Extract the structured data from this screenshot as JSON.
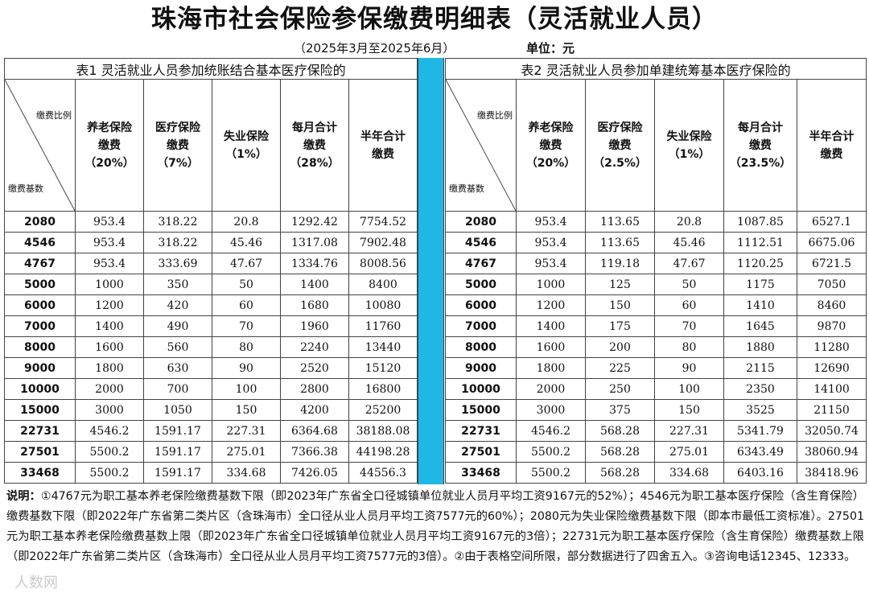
{
  "title": "珠海市社会保险参保缴费明细表（灵活就业人员）",
  "period": "（2025年3月至2025年6月）",
  "unit": "单位：元",
  "corner": {
    "ratio_label": "缴费比例",
    "base_label": "缴费基数"
  },
  "table1": {
    "caption": "表1  灵活就业人员参加统账结合基本医疗保险的",
    "headers": [
      [
        "养老保险",
        "缴费",
        "（20%）"
      ],
      [
        "医疗保险",
        "缴费",
        "（7%）"
      ],
      [
        "失业保险",
        "（1%）"
      ],
      [
        "每月合计",
        "缴费",
        "（28%）"
      ],
      [
        "半年合计",
        "缴费"
      ]
    ],
    "rows": [
      [
        "2080",
        "953.4",
        "318.22",
        "20.8",
        "1292.42",
        "7754.52"
      ],
      [
        "4546",
        "953.4",
        "318.22",
        "45.46",
        "1317.08",
        "7902.48"
      ],
      [
        "4767",
        "953.4",
        "333.69",
        "47.67",
        "1334.76",
        "8008.56"
      ],
      [
        "5000",
        "1000",
        "350",
        "50",
        "1400",
        "8400"
      ],
      [
        "6000",
        "1200",
        "420",
        "60",
        "1680",
        "10080"
      ],
      [
        "7000",
        "1400",
        "490",
        "70",
        "1960",
        "11760"
      ],
      [
        "8000",
        "1600",
        "560",
        "80",
        "2240",
        "13440"
      ],
      [
        "9000",
        "1800",
        "630",
        "90",
        "2520",
        "15120"
      ],
      [
        "10000",
        "2000",
        "700",
        "100",
        "2800",
        "16800"
      ],
      [
        "15000",
        "3000",
        "1050",
        "150",
        "4200",
        "25200"
      ],
      [
        "22731",
        "4546.2",
        "1591.17",
        "227.31",
        "6364.68",
        "38188.08"
      ],
      [
        "27501",
        "5500.2",
        "1591.17",
        "275.01",
        "7366.38",
        "44198.28"
      ],
      [
        "33468",
        "5500.2",
        "1591.17",
        "334.68",
        "7426.05",
        "44556.3"
      ]
    ]
  },
  "table2": {
    "caption": "表2  灵活就业人员参加单建统筹基本医疗保险的",
    "headers": [
      [
        "养老保险",
        "缴费",
        "（20%）"
      ],
      [
        "医疗保险",
        "缴费",
        "（2.5%）"
      ],
      [
        "失业保险",
        "（1%）"
      ],
      [
        "每月合计",
        "缴费",
        "（23.5%）"
      ],
      [
        "半年合计",
        "缴费"
      ]
    ],
    "rows": [
      [
        "2080",
        "953.4",
        "113.65",
        "20.8",
        "1087.85",
        "6527.1"
      ],
      [
        "4546",
        "953.4",
        "113.65",
        "45.46",
        "1112.51",
        "6675.06"
      ],
      [
        "4767",
        "953.4",
        "119.18",
        "47.67",
        "1120.25",
        "6721.5"
      ],
      [
        "5000",
        "1000",
        "125",
        "50",
        "1175",
        "7050"
      ],
      [
        "6000",
        "1200",
        "150",
        "60",
        "1410",
        "8460"
      ],
      [
        "7000",
        "1400",
        "175",
        "70",
        "1645",
        "9870"
      ],
      [
        "8000",
        "1600",
        "200",
        "80",
        "1880",
        "11280"
      ],
      [
        "9000",
        "1800",
        "225",
        "90",
        "2115",
        "12690"
      ],
      [
        "10000",
        "2000",
        "250",
        "100",
        "2350",
        "14100"
      ],
      [
        "15000",
        "3000",
        "375",
        "150",
        "3525",
        "21150"
      ],
      [
        "22731",
        "4546.2",
        "568.28",
        "227.31",
        "5341.79",
        "32050.74"
      ],
      [
        "27501",
        "5500.2",
        "568.28",
        "275.01",
        "6343.49",
        "38060.94"
      ],
      [
        "33468",
        "5500.2",
        "568.28",
        "334.68",
        "6403.16",
        "38418.96"
      ]
    ]
  },
  "notes": {
    "lead": "说明：",
    "text": "①4767元为职工基本养老保险缴费基数下限（即2023年广东省全口径城镇单位就业人员月平均工资9167元的52%）；4546元为职工基本医疗保险（含生育保险）缴费基数下限（即2022年广东省第二类片区（含珠海市）全口径从业人员月平均工资7577元的60%）；2080元为失业保险缴费基数下限（即本市最低工资标准）。27501元为职工基本养老保险缴费基数上限（即2023年广东省全口径城镇单位就业人员月平均工资9167元的3倍）；22731元为职工基本医疗保险（含生育保险）缴费基数上限（即2022年广东省第二类片区（含珠海市）全口径从业人员月平均工资7577元的3倍）。②由于表格空间所限，部分数据进行了四舍五入。③咨询电话12345、12333。"
  },
  "watermark": "人数网"
}
